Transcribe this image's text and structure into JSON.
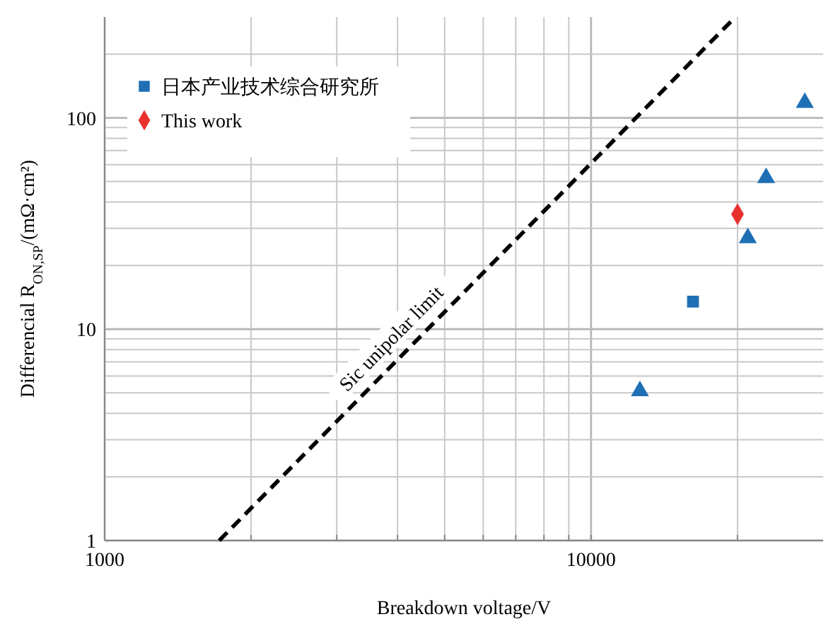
{
  "chart_data": {
    "type": "scatter",
    "xlabel": "Breakdown voltage/V",
    "ylabel": "Differencial R$_{ON,SP}$/(mΩ·cm²)",
    "log": "xy",
    "grid": true,
    "legend": "top left",
    "xlim": [
      1000,
      30000
    ],
    "xticks": [
      1000,
      {
        "value": 2000,
        "label": null
      },
      {
        "value": 3000,
        "label": null
      },
      {
        "value": 4000,
        "label": null
      },
      {
        "value": 5000,
        "label": null
      },
      {
        "value": 6000,
        "label": null
      },
      {
        "value": 7000,
        "label": null
      },
      {
        "value": 8000,
        "label": null
      },
      {
        "value": 9000,
        "label": null
      },
      10000,
      {
        "value": 20000,
        "label": null
      }
    ],
    "ylim": [
      1,
      300
    ],
    "yticks": [
      1,
      {
        "value": 2,
        "label": null
      },
      {
        "value": 3,
        "label": null
      },
      {
        "value": 4,
        "label": null
      },
      {
        "value": 5,
        "label": null
      },
      {
        "value": 6,
        "label": null
      },
      {
        "value": 7,
        "label": null
      },
      {
        "value": 8,
        "label": null
      },
      {
        "value": 9,
        "label": null
      },
      10,
      {
        "value": 20,
        "label": null
      },
      {
        "value": 30,
        "label": null
      },
      {
        "value": 40,
        "label": null
      },
      {
        "value": 50,
        "label": null
      },
      {
        "value": 60,
        "label": null
      },
      {
        "value": 70,
        "label": null
      },
      {
        "value": 80,
        "label": null
      },
      {
        "value": 90,
        "label": null
      },
      100,
      {
        "value": 200,
        "label": null
      }
    ],
    "series": [
      {
        "color": "#1f6fb5",
        "marker": "triangle",
        "x": [
          12600,
          21000,
          22900,
          27500
        ],
        "values": [
          5.1,
          27,
          52,
          118
        ]
      },
      {
        "name": "日本产业技术综合研究所",
        "color": "#1f6fb5",
        "marker": "square",
        "x": [
          16200
        ],
        "values": [
          13.5
        ]
      },
      {
        "name": "This work",
        "color": "#e8312f",
        "marker": "diamond",
        "x": [
          20000
        ],
        "values": [
          35
        ]
      },
      {
        "type": "line",
        "color": "#000000",
        "marker": "none",
        "line_style": "dashed",
        "x": [
          1720,
          19800
        ],
        "values": [
          1,
          300
        ]
      }
    ],
    "annotations": [
      "Sic unipolar limit"
    ]
  }
}
